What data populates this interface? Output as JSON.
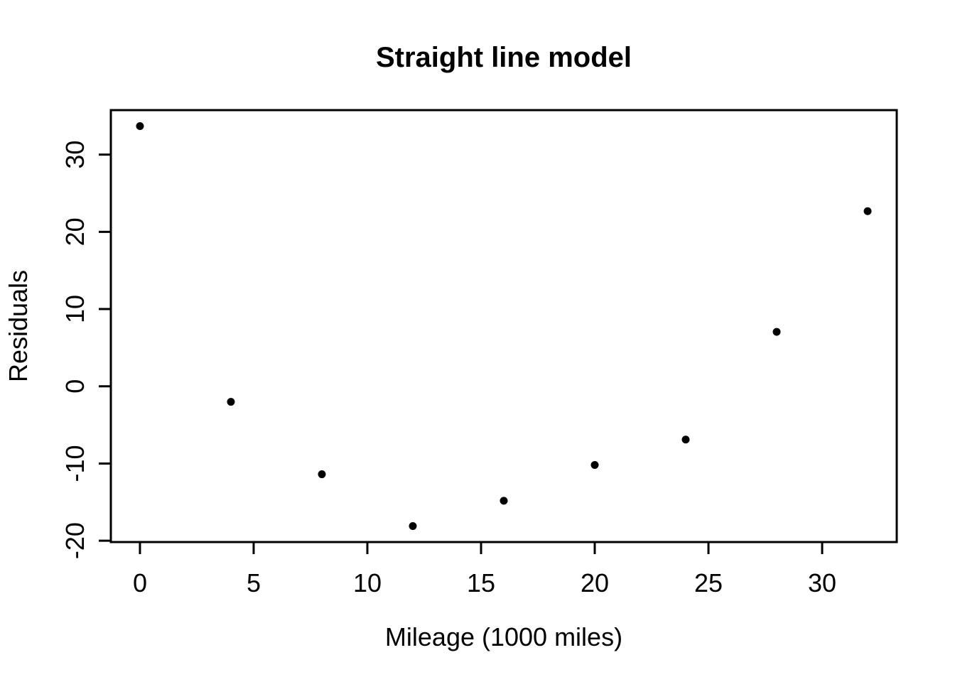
{
  "chart_data": {
    "type": "scatter",
    "title": "Straight line model",
    "xlabel": "Mileage (1000 miles)",
    "ylabel": "Residuals",
    "x": [
      0,
      4,
      8,
      12,
      16,
      20,
      24,
      28,
      32
    ],
    "y": [
      33.69,
      -2.01,
      -11.39,
      -18.1,
      -14.82,
      -10.19,
      -6.9,
      7.05,
      22.67
    ],
    "x_ticks": [
      0,
      5,
      10,
      15,
      20,
      25,
      30
    ],
    "y_ticks": [
      -20,
      -10,
      0,
      10,
      20,
      30
    ],
    "xlim": [
      -1.28,
      33.28
    ],
    "ylim": [
      -20.17,
      35.76
    ],
    "grid": false,
    "legend": null,
    "point_style": "filled-circle",
    "point_color": "#000000",
    "axis_color": "#000000",
    "background_color": "#ffffff"
  }
}
